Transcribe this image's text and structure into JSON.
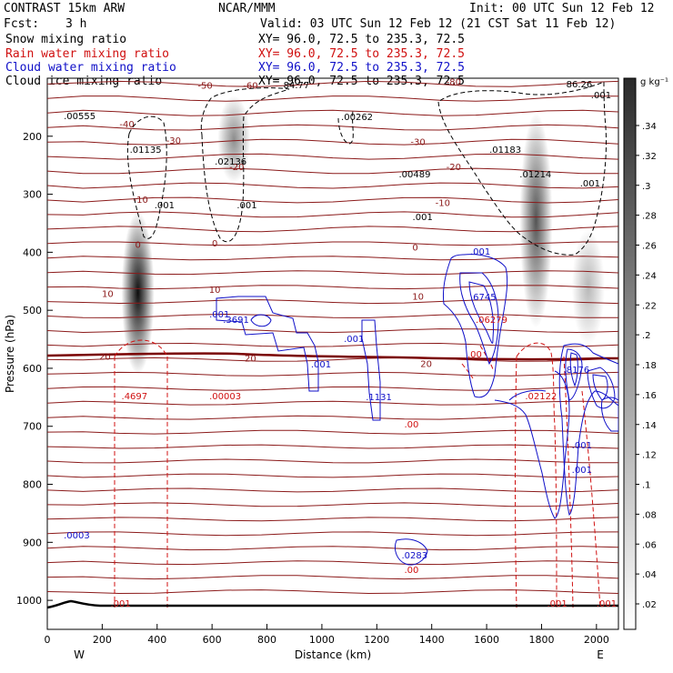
{
  "header": {
    "model": "CONTRAST 15km ARW",
    "org": "NCAR/MMM",
    "init": "Init: 00 UTC Sun 12 Feb 12",
    "fcst_label": "Fcst:",
    "fcst_value": "3 h",
    "valid": "Valid: 03 UTC Sun 12 Feb 12 (21 CST Sat 11 Feb 12)"
  },
  "fields": [
    {
      "name": "Snow mixing ratio",
      "color": "#000000",
      "xy": "XY=  96.0, 72.5 to 235.3, 72.5"
    },
    {
      "name": "Rain water mixing ratio",
      "color": "#d01010",
      "xy": "XY=  96.0, 72.5 to 235.3, 72.5"
    },
    {
      "name": "Cloud water mixing ratio",
      "color": "#1010c8",
      "xy": "XY=  96.0, 72.5 to 235.3, 72.5"
    },
    {
      "name": "Cloud ice mixing ratio",
      "color": "#000000",
      "xy": "XY=  96.0, 72.5 to 235.3, 72.5"
    }
  ],
  "colors": {
    "temperature": "#8b1a1a",
    "freezing_level": "#7a0000",
    "rain": "#d01010",
    "cloud_water": "#1010c8",
    "cloud_ice": "#000000",
    "terrain": "#000000"
  },
  "chart_data": {
    "type": "heatmap",
    "x": {
      "label": "Distance (km)",
      "range": [
        0,
        2080
      ],
      "ticks": [
        0,
        200,
        400,
        600,
        800,
        1000,
        1200,
        1400,
        1600,
        1800,
        2000
      ],
      "left_label": "W",
      "right_label": "E"
    },
    "y": {
      "label": "Pressure (hPa)",
      "range": [
        100,
        1050
      ],
      "ticks": [
        200,
        300,
        400,
        500,
        600,
        700,
        800,
        900,
        1000
      ]
    },
    "colorbar": {
      "unit": "g kg⁻¹",
      "ticks": [
        ".34",
        ".32",
        ".3",
        ".28",
        ".26",
        ".24",
        ".22",
        ".2",
        ".18",
        ".16",
        ".14",
        ".12",
        ".1",
        ".08",
        ".06",
        ".04",
        ".02"
      ]
    },
    "snow_columns": [
      {
        "x": 330,
        "y": [
          330,
          610
        ],
        "peak": 0.34
      },
      {
        "x": 680,
        "y": [
          130,
          280
        ],
        "peak": 0.16
      },
      {
        "x": 1780,
        "y": [
          160,
          530
        ],
        "peak": 0.24
      },
      {
        "x": 1970,
        "y": [
          360,
          560
        ],
        "peak": 0.1
      }
    ],
    "temperature_contours": [
      {
        "label": "-80",
        "x": 1480,
        "y": 112
      },
      {
        "label": "-60",
        "x": 740,
        "y": 118
      },
      {
        "label": "-50",
        "x": 575,
        "y": 118
      },
      {
        "label": "-40",
        "x": 290,
        "y": 185
      },
      {
        "label": "-30",
        "x": 460,
        "y": 213
      },
      {
        "label": "-30",
        "x": 1350,
        "y": 215
      },
      {
        "label": "-20",
        "x": 690,
        "y": 258
      },
      {
        "label": "-20",
        "x": 1480,
        "y": 258
      },
      {
        "label": "-10",
        "x": 340,
        "y": 315
      },
      {
        "label": "-10",
        "x": 1440,
        "y": 320
      },
      {
        "label": "0",
        "x": 330,
        "y": 392
      },
      {
        "label": "0",
        "x": 610,
        "y": 390
      },
      {
        "label": "0",
        "x": 1340,
        "y": 397
      },
      {
        "label": "10",
        "x": 220,
        "y": 477
      },
      {
        "label": "10",
        "x": 610,
        "y": 470
      },
      {
        "label": "10",
        "x": 1350,
        "y": 482
      },
      {
        "label": "20",
        "x": 210,
        "y": 585
      },
      {
        "label": "20",
        "x": 740,
        "y": 588
      },
      {
        "label": "20",
        "x": 1380,
        "y": 598
      }
    ],
    "maxima_labels": [
      {
        "text": ".00555",
        "x": 60,
        "y": 131,
        "color": "#000000"
      },
      {
        "text": ".01135",
        "x": 300,
        "y": 168,
        "color": "#000000"
      },
      {
        "text": ".02136",
        "x": 610,
        "y": 181,
        "color": "#000000"
      },
      {
        "text": ".00262",
        "x": 1070,
        "y": 132,
        "color": "#000000"
      },
      {
        "text": ".00489",
        "x": 1280,
        "y": 195,
        "color": "#000000"
      },
      {
        "text": ".01183",
        "x": 1610,
        "y": 168,
        "color": "#000000"
      },
      {
        "text": ".01214",
        "x": 1720,
        "y": 195,
        "color": "#000000"
      },
      {
        "text": ".001",
        "x": 1940,
        "y": 205,
        "color": "#000000"
      },
      {
        "text": ".001",
        "x": 1980,
        "y": 108,
        "color": "#000000"
      },
      {
        "text": ".001",
        "x": 390,
        "y": 229,
        "color": "#000000"
      },
      {
        "text": ".001",
        "x": 690,
        "y": 229,
        "color": "#000000"
      },
      {
        "text": "84.77",
        "x": 860,
        "y": 97,
        "color": "#000000"
      },
      {
        "text": ".001",
        "x": 1330,
        "y": 242,
        "color": "#000000"
      },
      {
        "text": "86.26",
        "x": 1890,
        "y": 96,
        "color": "#000000"
      },
      {
        "text": ".3691",
        "x": 640,
        "y": 355,
        "color": "#1010c8"
      },
      {
        "text": ".001",
        "x": 590,
        "y": 349,
        "color": "#1010c8"
      },
      {
        "text": ".001",
        "x": 960,
        "y": 404,
        "color": "#1010c8"
      },
      {
        "text": ".001",
        "x": 1080,
        "y": 376,
        "color": "#1010c8"
      },
      {
        "text": ".1131",
        "x": 1160,
        "y": 440,
        "color": "#1010c8"
      },
      {
        "text": ".001",
        "x": 1540,
        "y": 280,
        "color": "#1010c8"
      },
      {
        "text": ".6745",
        "x": 1540,
        "y": 330,
        "color": "#1010c8"
      },
      {
        "text": ".8176",
        "x": 1880,
        "y": 410,
        "color": "#1010c8"
      },
      {
        "text": ".001",
        "x": 1910,
        "y": 493,
        "color": "#1010c8"
      },
      {
        "text": ".001",
        "x": 1910,
        "y": 520,
        "color": "#1010c8"
      },
      {
        "text": ".0003",
        "x": 60,
        "y": 592,
        "color": "#1010c8"
      },
      {
        "text": ".0283",
        "x": 1290,
        "y": 614,
        "color": "#1010c8"
      },
      {
        "text": ".4697",
        "x": 270,
        "y": 439,
        "color": "#d01010"
      },
      {
        "text": ".00003",
        "x": 590,
        "y": 439,
        "color": "#d01010"
      },
      {
        "text": ".00",
        "x": 1300,
        "y": 470,
        "color": "#d01010"
      },
      {
        "text": ".00",
        "x": 1300,
        "y": 630,
        "color": "#d01010"
      },
      {
        "text": ".06279",
        "x": 1560,
        "y": 355,
        "color": "#d01010"
      },
      {
        "text": ".02122",
        "x": 1740,
        "y": 439,
        "color": "#d01010"
      },
      {
        "text": ".00",
        "x": 1530,
        "y": 393,
        "color": "#d01010"
      },
      {
        "text": ".001",
        "x": 230,
        "y": 667,
        "color": "#d01010"
      },
      {
        "text": ".001",
        "x": 1820,
        "y": 667,
        "color": "#d01010"
      },
      {
        "text": ".001",
        "x": 2000,
        "y": 667,
        "color": "#d01010"
      }
    ]
  }
}
